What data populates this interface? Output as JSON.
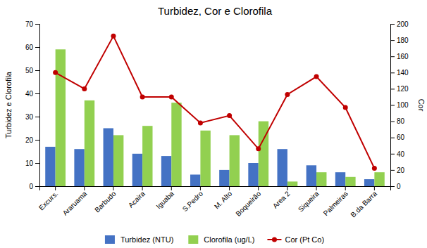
{
  "chart_data": {
    "type": "bar",
    "title": "Turbidez, Cor e Clorofila",
    "categories": [
      "Excurs.",
      "Araruama",
      "Barbudo",
      "Acaira",
      "Iguaba",
      "S.Pedro",
      "M. Alto",
      "Boqueirão",
      "Area 2",
      "Siqueira",
      "Palmeiras",
      "B.da Barra"
    ],
    "series": [
      {
        "name": "Turbidez (NTU)",
        "type": "bar",
        "color": "#4472C4",
        "values": [
          17,
          16,
          25,
          14,
          13,
          5,
          7,
          10,
          16,
          9,
          6,
          3
        ]
      },
      {
        "name": "Clorofila (ug/L)",
        "type": "bar",
        "color": "#92D050",
        "values": [
          59,
          37,
          22,
          26,
          36,
          24,
          22,
          28,
          2,
          6,
          4,
          6
        ]
      },
      {
        "name": "Cor (Pt Co)",
        "type": "line",
        "axis": "y2",
        "color": "#C00000",
        "marker": "circle",
        "values": [
          140,
          120,
          185,
          110,
          110,
          78,
          87,
          46,
          113,
          135,
          97,
          22
        ]
      }
    ],
    "ylabel": "Turbidez e Clorofila",
    "y2label": "Cor",
    "ylim": [
      0,
      70
    ],
    "yticks": [
      0,
      10,
      20,
      30,
      40,
      50,
      60,
      70
    ],
    "y2lim": [
      0,
      200
    ],
    "y2ticks": [
      0,
      20,
      40,
      60,
      80,
      100,
      120,
      140,
      160,
      180,
      200
    ],
    "grid": false,
    "legend": "bottom"
  }
}
